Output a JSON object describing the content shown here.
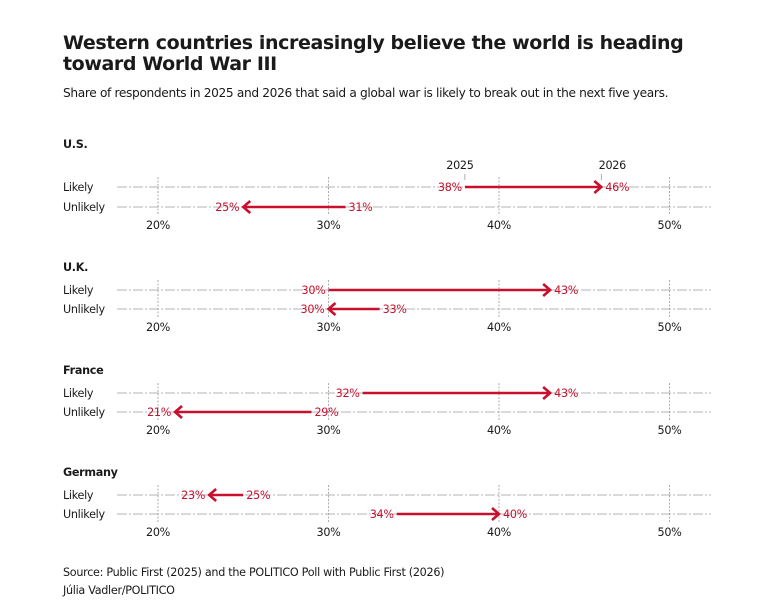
{
  "header": {
    "title": "Western countries increasingly believe the world is heading toward World War III",
    "subtitle": "Share of respondents in 2025 and 2026 that said a global war is likely to break out in the next five years."
  },
  "footer": {
    "source": "Source: Public First (2025) and the POLITICO Poll with Public First (2026)",
    "credit": "Júlia Vadler/POLITICO"
  },
  "colors": {
    "accent": "#c8102e",
    "grid": "#9a9a9a",
    "text": "#1a1a1a"
  },
  "chart_data": {
    "type": "arrow-dot",
    "title": "Western countries increasingly believe the world is heading toward World War III",
    "subtitle": "Share of respondents in 2025 and 2026 that said a global war is likely to break out in the next five years.",
    "xlabel": "",
    "ylabel": "",
    "xlim": [
      17.7,
      52.5
    ],
    "xticks": [
      20,
      30,
      40,
      50
    ],
    "xtick_labels": [
      "20%",
      "30%",
      "40%",
      "50%"
    ],
    "grid": true,
    "legend": {
      "from_label": "2025",
      "to_label": "2026",
      "placement": "top, above first row"
    },
    "row_labels": [
      "Likely",
      "Unlikely"
    ],
    "panels": [
      {
        "name": "U.S.",
        "rows": [
          {
            "label": "Likely",
            "from": 38,
            "to": 46
          },
          {
            "label": "Unlikely",
            "from": 31,
            "to": 25
          }
        ]
      },
      {
        "name": "U.K.",
        "rows": [
          {
            "label": "Likely",
            "from": 30,
            "to": 43
          },
          {
            "label": "Unlikely",
            "from": 33,
            "to": 30
          }
        ]
      },
      {
        "name": "France",
        "rows": [
          {
            "label": "Likely",
            "from": 32,
            "to": 43
          },
          {
            "label": "Unlikely",
            "from": 29,
            "to": 21
          }
        ]
      },
      {
        "name": "Germany",
        "rows": [
          {
            "label": "Likely",
            "from": 25,
            "to": 23
          },
          {
            "label": "Unlikely",
            "from": 34,
            "to": 40
          }
        ]
      }
    ]
  }
}
